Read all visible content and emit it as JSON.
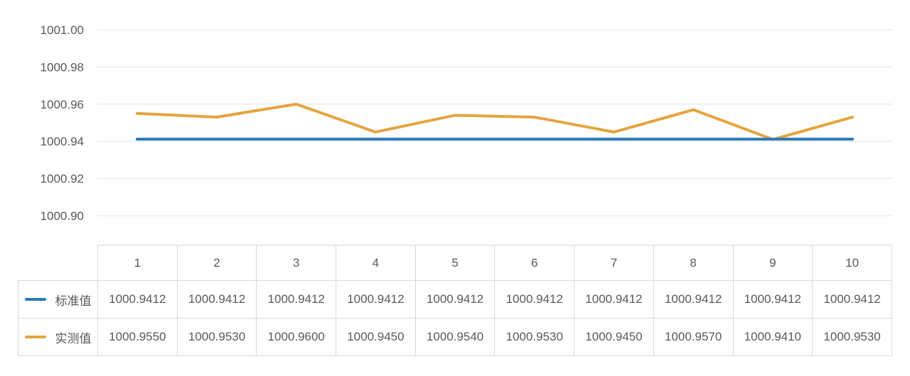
{
  "chart_data": {
    "type": "line",
    "title": "",
    "xlabel": "",
    "ylabel": "",
    "categories": [
      "1",
      "2",
      "3",
      "4",
      "5",
      "6",
      "7",
      "8",
      "9",
      "10"
    ],
    "series": [
      {
        "name": "标准值",
        "color": "#2B7AB8",
        "values": [
          1000.9412,
          1000.9412,
          1000.9412,
          1000.9412,
          1000.9412,
          1000.9412,
          1000.9412,
          1000.9412,
          1000.9412,
          1000.9412
        ]
      },
      {
        "name": "实测值",
        "color": "#E5A43F",
        "values": [
          1000.955,
          1000.953,
          1000.96,
          1000.945,
          1000.954,
          1000.953,
          1000.945,
          1000.957,
          1000.941,
          1000.953
        ]
      }
    ],
    "ylim": [
      1000.9,
      1001.0
    ],
    "ytick_step": 0.02,
    "ytick_labels": [
      "1001.00",
      "1000.98",
      "1000.96",
      "1000.94",
      "1000.92",
      "1000.90"
    ],
    "grid": true,
    "gridline_color": "#e4e4e4",
    "axis_label_color": "#595959",
    "legend_position": "table-left"
  },
  "table": {
    "column_headers": [
      "1",
      "2",
      "3",
      "4",
      "5",
      "6",
      "7",
      "8",
      "9",
      "10"
    ],
    "rows": [
      {
        "label": "标准值",
        "marker_color": "#2B7AB8",
        "values": [
          "1000.9412",
          "1000.9412",
          "1000.9412",
          "1000.9412",
          "1000.9412",
          "1000.9412",
          "1000.9412",
          "1000.9412",
          "1000.9412",
          "1000.9412"
        ]
      },
      {
        "label": "实测值",
        "marker_color": "#E5A43F",
        "values": [
          "1000.9550",
          "1000.9530",
          "1000.9600",
          "1000.9450",
          "1000.9540",
          "1000.9530",
          "1000.9450",
          "1000.9570",
          "1000.9410",
          "1000.9530"
        ]
      }
    ],
    "border_color": "#d9d9d9",
    "text_color": "#595959"
  }
}
